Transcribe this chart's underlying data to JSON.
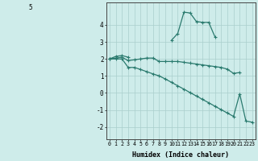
{
  "xlabel": "Humidex (Indice chaleur)",
  "x": [
    0,
    1,
    2,
    3,
    4,
    5,
    6,
    7,
    8,
    9,
    10,
    11,
    12,
    13,
    14,
    15,
    16,
    17,
    18,
    19,
    20,
    21,
    22,
    23
  ],
  "line1": [
    2.0,
    2.15,
    2.2,
    2.1,
    null,
    null,
    null,
    null,
    null,
    null,
    3.1,
    3.5,
    4.75,
    4.7,
    4.2,
    4.15,
    4.15,
    3.3,
    null,
    null,
    null,
    null,
    null,
    null
  ],
  "line2": [
    2.0,
    2.05,
    2.1,
    1.9,
    1.95,
    2.0,
    2.05,
    2.05,
    1.85,
    1.85,
    1.85,
    1.85,
    1.8,
    1.75,
    1.7,
    1.65,
    1.6,
    1.55,
    1.5,
    1.4,
    1.15,
    1.2,
    null,
    null
  ],
  "line3": [
    2.0,
    2.0,
    2.0,
    1.5,
    1.5,
    1.38,
    1.25,
    1.12,
    1.0,
    0.82,
    0.62,
    0.42,
    0.22,
    0.02,
    -0.18,
    -0.38,
    -0.58,
    -0.78,
    -0.98,
    -1.18,
    -1.38,
    -0.05,
    -1.65,
    -1.72
  ],
  "line_color": "#2a7a6e",
  "bg_color": "#ceecea",
  "grid_color": "#aacfcc",
  "ylim": [
    -2.7,
    5.3
  ],
  "yticks": [
    -2,
    -1,
    0,
    1,
    2,
    3,
    4
  ],
  "ytop_label": "5",
  "figsize": [
    3.2,
    2.0
  ],
  "dpi": 100
}
